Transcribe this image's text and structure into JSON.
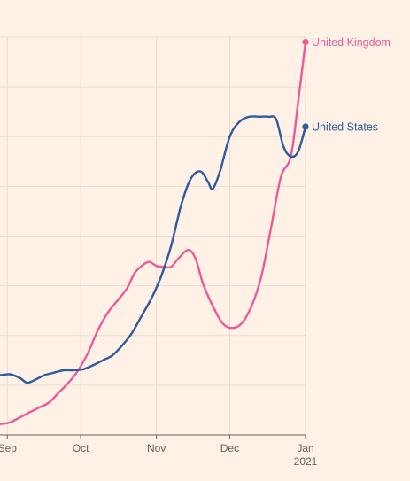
{
  "colors": {
    "background": "#FFF1E5",
    "grid": "#E9DCCF",
    "axis": "#66605C",
    "text": "#66605C"
  },
  "chart_data": {
    "type": "line",
    "title": "",
    "xlabel": "",
    "ylabel": "",
    "grid": true,
    "x_ticks": [
      {
        "date": "2020-09-01",
        "label": "Sep"
      },
      {
        "date": "2020-10-01",
        "label": "Oct"
      },
      {
        "date": "2020-11-01",
        "label": "Nov"
      },
      {
        "date": "2020-12-01",
        "label": "Dec"
      },
      {
        "date": "2021-01-01",
        "label": "Jan",
        "sublabel": "2021"
      }
    ],
    "xlim": [
      "2020-08-29",
      "2021-01-01"
    ],
    "ylim": [
      0,
      8
    ],
    "series": [
      {
        "name": "United Kingdom",
        "color": "#EC5A9A",
        "points": [
          [
            "2020-08-29",
            0.22
          ],
          [
            "2020-09-02",
            0.25
          ],
          [
            "2020-09-06",
            0.35
          ],
          [
            "2020-09-10",
            0.45
          ],
          [
            "2020-09-14",
            0.55
          ],
          [
            "2020-09-18",
            0.65
          ],
          [
            "2020-09-22",
            0.85
          ],
          [
            "2020-09-26",
            1.05
          ],
          [
            "2020-09-30",
            1.3
          ],
          [
            "2020-10-04",
            1.65
          ],
          [
            "2020-10-08",
            2.1
          ],
          [
            "2020-10-12",
            2.45
          ],
          [
            "2020-10-16",
            2.7
          ],
          [
            "2020-10-20",
            2.95
          ],
          [
            "2020-10-23",
            3.25
          ],
          [
            "2020-10-26",
            3.4
          ],
          [
            "2020-10-29",
            3.48
          ],
          [
            "2020-11-01",
            3.4
          ],
          [
            "2020-11-04",
            3.38
          ],
          [
            "2020-11-07",
            3.38
          ],
          [
            "2020-11-10",
            3.55
          ],
          [
            "2020-11-14",
            3.72
          ],
          [
            "2020-11-17",
            3.55
          ],
          [
            "2020-11-20",
            3.05
          ],
          [
            "2020-11-24",
            2.6
          ],
          [
            "2020-11-28",
            2.25
          ],
          [
            "2020-12-02",
            2.15
          ],
          [
            "2020-12-06",
            2.25
          ],
          [
            "2020-12-10",
            2.6
          ],
          [
            "2020-12-14",
            3.2
          ],
          [
            "2020-12-18",
            4.2
          ],
          [
            "2020-12-22",
            5.2
          ],
          [
            "2020-12-26",
            5.6
          ],
          [
            "2020-12-29",
            6.7
          ],
          [
            "2021-01-01",
            7.9
          ]
        ]
      },
      {
        "name": "United States",
        "color": "#2E5A9F",
        "points": [
          [
            "2020-08-29",
            1.2
          ],
          [
            "2020-09-02",
            1.22
          ],
          [
            "2020-09-06",
            1.15
          ],
          [
            "2020-09-09",
            1.05
          ],
          [
            "2020-09-12",
            1.1
          ],
          [
            "2020-09-16",
            1.2
          ],
          [
            "2020-09-20",
            1.25
          ],
          [
            "2020-09-24",
            1.3
          ],
          [
            "2020-09-28",
            1.3
          ],
          [
            "2020-10-02",
            1.32
          ],
          [
            "2020-10-06",
            1.4
          ],
          [
            "2020-10-10",
            1.5
          ],
          [
            "2020-10-14",
            1.6
          ],
          [
            "2020-10-18",
            1.8
          ],
          [
            "2020-10-22",
            2.05
          ],
          [
            "2020-10-26",
            2.4
          ],
          [
            "2020-10-30",
            2.75
          ],
          [
            "2020-11-03",
            3.2
          ],
          [
            "2020-11-07",
            3.8
          ],
          [
            "2020-11-11",
            4.6
          ],
          [
            "2020-11-15",
            5.15
          ],
          [
            "2020-11-19",
            5.3
          ],
          [
            "2020-11-22",
            5.1
          ],
          [
            "2020-11-24",
            4.95
          ],
          [
            "2020-11-27",
            5.3
          ],
          [
            "2020-12-01",
            6.0
          ],
          [
            "2020-12-05",
            6.3
          ],
          [
            "2020-12-09",
            6.4
          ],
          [
            "2020-12-13",
            6.4
          ],
          [
            "2020-12-17",
            6.4
          ],
          [
            "2020-12-20",
            6.35
          ],
          [
            "2020-12-23",
            5.8
          ],
          [
            "2020-12-26",
            5.6
          ],
          [
            "2020-12-29",
            5.7
          ],
          [
            "2021-01-01",
            6.2
          ]
        ]
      }
    ]
  }
}
